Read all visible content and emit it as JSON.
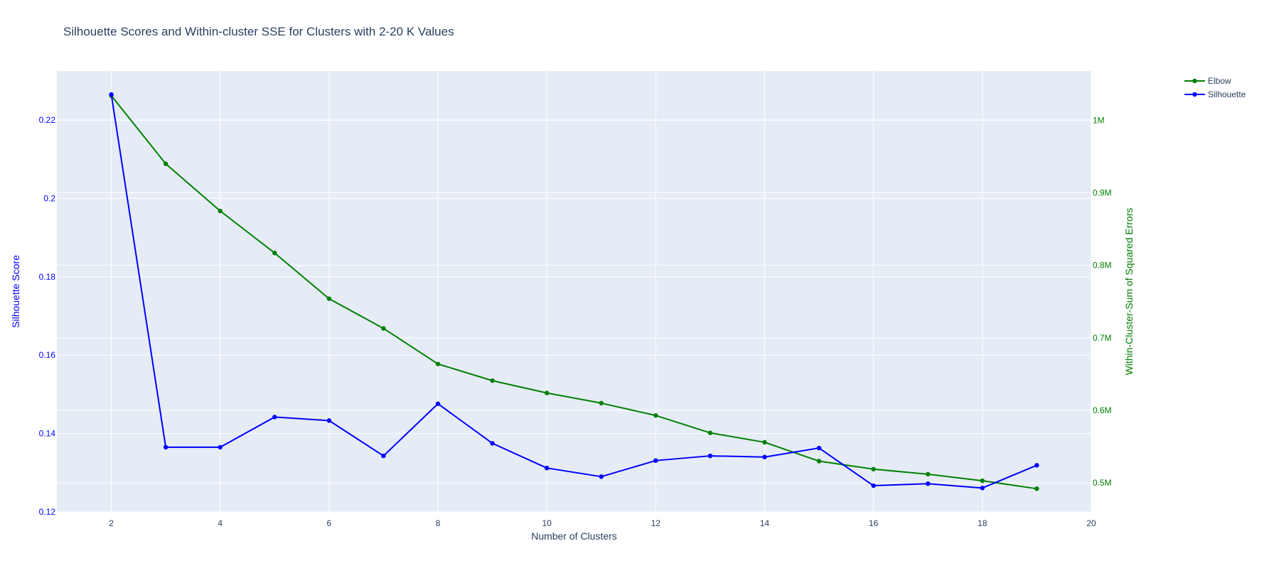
{
  "chart_data": {
    "type": "line",
    "title": "Silhouette Scores and Within-cluster SSE for Clusters with 2-20 K Values",
    "xlabel": "Number of Clusters",
    "ylabel_left": "Silhouette Score",
    "ylabel_right": "Within-Cluster-Sum of Squared Errors",
    "xlim": [
      1,
      20
    ],
    "ylim_left": [
      0.12,
      0.2325
    ],
    "ylim_right": [
      460000,
      1068000
    ],
    "x_ticks": [
      2,
      4,
      6,
      8,
      10,
      12,
      14,
      16,
      18,
      20
    ],
    "x_tick_labels": [
      "2",
      "4",
      "6",
      "8",
      "10",
      "12",
      "14",
      "16",
      "18",
      "20"
    ],
    "y_left_ticks": [
      0.12,
      0.14,
      0.16,
      0.18,
      0.2,
      0.22
    ],
    "y_left_tick_labels": [
      "0.12",
      "0.14",
      "0.16",
      "0.18",
      "0.2",
      "0.22"
    ],
    "y_right_ticks": [
      500000,
      600000,
      700000,
      800000,
      900000,
      1000000
    ],
    "y_right_tick_labels": [
      "0.5M",
      "0.6M",
      "0.7M",
      "0.8M",
      "0.9M",
      "1M"
    ],
    "grid": true,
    "legend_position": "top-right",
    "x": [
      2,
      3,
      4,
      5,
      6,
      7,
      8,
      9,
      10,
      11,
      12,
      13,
      14,
      15,
      16,
      17,
      18,
      19
    ],
    "series": [
      {
        "name": "Elbow",
        "axis": "right",
        "color": "#008000",
        "values": [
          1034000,
          940000,
          875000,
          817000,
          754000,
          713000,
          664000,
          641000,
          624000,
          610000,
          593000,
          569000,
          556000,
          530000,
          519000,
          512000,
          503000,
          492000
        ]
      },
      {
        "name": "Silhouette",
        "axis": "left",
        "color": "#0000ff",
        "values": [
          0.2265,
          0.1365,
          0.1365,
          0.1442,
          0.1433,
          0.1343,
          0.1476,
          0.1375,
          0.1312,
          0.129,
          0.1331,
          0.1343,
          0.134,
          0.1363,
          0.1267,
          0.1272,
          0.1261,
          0.1319
        ]
      }
    ],
    "colors": {
      "plot_background": "#e5ecf6",
      "grid": "#ffffff",
      "text": "#2a3f5f",
      "left_axis": "#0000ff",
      "right_axis": "#008000"
    }
  }
}
